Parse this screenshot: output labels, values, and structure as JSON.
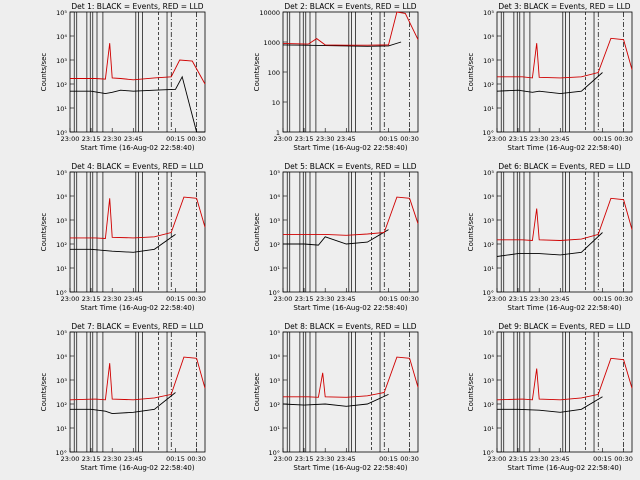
{
  "chart_data": [
    {
      "type": "line",
      "title": "Det 1: BLACK = Events, RED = LLD",
      "xlabel": "Start Time (16-Aug-02 22:58:40)",
      "ylabel": "Counts/sec",
      "ylog": true,
      "ytick_labels": [
        "10⁰",
        "10¹",
        "10²",
        "10³",
        "10⁴",
        "10⁵"
      ],
      "ylim": [
        1,
        100000
      ],
      "xtick_labels": [
        "23:00",
        "23:15",
        "23:30",
        "23:45",
        "00:15",
        "00:30"
      ],
      "series": [
        {
          "name": "BLACK = Events",
          "color": "#000000",
          "x": [
            23.0,
            23.25,
            23.42,
            23.5,
            23.6,
            23.75,
            24.0,
            24.25,
            24.33,
            24.5,
            24.6
          ],
          "y": [
            50,
            50,
            40,
            45,
            55,
            50,
            55,
            60,
            200,
            1,
            1
          ]
        },
        {
          "name": "RED = LLD",
          "color": "#d00000",
          "x": [
            23.0,
            23.3,
            23.42,
            23.47,
            23.5,
            23.6,
            23.75,
            24.0,
            24.2,
            24.3,
            24.45,
            24.6
          ],
          "y": [
            170,
            170,
            160,
            5000,
            180,
            170,
            150,
            180,
            200,
            1000,
            900,
            100
          ]
        }
      ]
    },
    {
      "type": "line",
      "title": "Det 2: BLACK = Events, RED = LLD",
      "xlabel": "Start Time (16-Aug-02 22:58:40)",
      "ylabel": "Counts/sec",
      "ylog": true,
      "ytick_labels": [
        "1",
        "10",
        "100",
        "1000",
        "10000"
      ],
      "ylim": [
        1,
        10000
      ],
      "xtick_labels": [
        "23:00",
        "23:15",
        "23:30",
        "23:45",
        "00:15",
        "00:30"
      ],
      "series": [
        {
          "name": "BLACK = Events",
          "color": "#000000",
          "x": [
            23.0,
            23.25,
            23.5,
            23.75,
            24.0,
            24.25,
            24.4
          ],
          "y": [
            800,
            780,
            760,
            740,
            720,
            740,
            1000
          ]
        },
        {
          "name": "RED = LLD",
          "color": "#d00000",
          "x": [
            23.0,
            23.3,
            23.4,
            23.5,
            23.75,
            24.0,
            24.25,
            24.35,
            24.45,
            24.6
          ],
          "y": [
            900,
            850,
            1300,
            800,
            780,
            780,
            800,
            10000,
            9000,
            1200
          ]
        }
      ]
    },
    {
      "type": "line",
      "title": "Det 3: BLACK = Events, RED = LLD",
      "xlabel": "Start Time (16-Aug-02 22:58:40)",
      "ylabel": "Counts/sec",
      "ylog": true,
      "ytick_labels": [
        "10°",
        "10¹",
        "10²",
        "10³",
        "10⁴",
        "10⁵"
      ],
      "ylim": [
        1,
        100000
      ],
      "xtick_labels": [
        "23:00",
        "23:15",
        "23:30",
        "23:45",
        "00:15",
        "00:30"
      ],
      "series": [
        {
          "name": "BLACK = Events",
          "color": "#000000",
          "x": [
            23.0,
            23.25,
            23.42,
            23.5,
            23.75,
            24.0,
            24.25
          ],
          "y": [
            50,
            55,
            45,
            50,
            40,
            50,
            300
          ]
        },
        {
          "name": "RED = LLD",
          "color": "#d00000",
          "x": [
            23.0,
            23.3,
            23.42,
            23.47,
            23.5,
            23.75,
            24.0,
            24.2,
            24.35,
            24.5,
            24.6
          ],
          "y": [
            200,
            200,
            180,
            5000,
            190,
            180,
            200,
            300,
            8000,
            7000,
            400
          ]
        }
      ]
    },
    {
      "type": "line",
      "title": "Det 4: BLACK = Events, RED = LLD",
      "xlabel": "Start Time (16-Aug-02 22:58:40)",
      "ylabel": "Counts/sec",
      "ylog": true,
      "ytick_labels": [
        "10°",
        "10¹",
        "10²",
        "10³",
        "10⁴",
        "10⁵"
      ],
      "ylim": [
        1,
        100000
      ],
      "xtick_labels": [
        "23:00",
        "23:15",
        "23:30",
        "23:45",
        "00:15",
        "00:30"
      ],
      "series": [
        {
          "name": "BLACK = Events",
          "color": "#000000",
          "x": [
            23.0,
            23.25,
            23.5,
            23.75,
            24.0,
            24.25
          ],
          "y": [
            60,
            60,
            50,
            45,
            60,
            250
          ]
        },
        {
          "name": "RED = LLD",
          "color": "#d00000",
          "x": [
            23.0,
            23.3,
            23.42,
            23.47,
            23.5,
            23.75,
            24.0,
            24.2,
            24.35,
            24.5,
            24.6
          ],
          "y": [
            180,
            180,
            170,
            8000,
            190,
            180,
            200,
            300,
            9000,
            8000,
            500
          ]
        }
      ]
    },
    {
      "type": "line",
      "title": "Det 5: BLACK = Events, RED = LLD",
      "xlabel": "Start Time (16-Aug-02 22:58:40)",
      "ylabel": "Counts/sec",
      "ylog": true,
      "ytick_labels": [
        "10°",
        "10¹",
        "10²",
        "10³",
        "10⁴",
        "10⁵"
      ],
      "ylim": [
        1,
        100000
      ],
      "xtick_labels": [
        "23:00",
        "23:15",
        "23:30",
        "23:45",
        "00:15",
        "00:30"
      ],
      "series": [
        {
          "name": "BLACK = Events",
          "color": "#000000",
          "x": [
            23.0,
            23.25,
            23.42,
            23.5,
            23.75,
            24.0,
            24.25
          ],
          "y": [
            100,
            100,
            90,
            200,
            100,
            120,
            400
          ]
        },
        {
          "name": "RED = LLD",
          "color": "#d00000",
          "x": [
            23.0,
            23.3,
            23.5,
            23.75,
            24.0,
            24.2,
            24.35,
            24.5,
            24.6
          ],
          "y": [
            250,
            250,
            250,
            230,
            260,
            300,
            9000,
            8000,
            700
          ]
        }
      ]
    },
    {
      "type": "line",
      "title": "Det 6: BLACK = Events, RED = LLD",
      "xlabel": "Start Time (16-Aug-02 22:58:40)",
      "ylabel": "Counts/sec",
      "ylog": true,
      "ytick_labels": [
        "10°",
        "10¹",
        "10²",
        "10³",
        "10⁴",
        "10⁵"
      ],
      "ylim": [
        1,
        100000
      ],
      "xtick_labels": [
        "23:00",
        "23:15",
        "23:30",
        "23:45",
        "00:15",
        "00:30"
      ],
      "series": [
        {
          "name": "BLACK = Events",
          "color": "#000000",
          "x": [
            23.0,
            23.25,
            23.5,
            23.75,
            24.0,
            24.25
          ],
          "y": [
            30,
            40,
            40,
            35,
            45,
            300
          ]
        },
        {
          "name": "RED = LLD",
          "color": "#d00000",
          "x": [
            23.0,
            23.3,
            23.42,
            23.47,
            23.5,
            23.75,
            24.0,
            24.2,
            24.35,
            24.5,
            24.6
          ],
          "y": [
            150,
            150,
            140,
            3000,
            150,
            140,
            160,
            250,
            8000,
            7000,
            400
          ]
        }
      ]
    },
    {
      "type": "line",
      "title": "Det 7: BLACK = Events, RED = LLD",
      "xlabel": "Start Time (16-Aug-02 22:58:40)",
      "ylabel": "Counts/sec",
      "ylog": true,
      "ytick_labels": [
        "10°",
        "10¹",
        "10²",
        "10³",
        "10⁴",
        "10⁵"
      ],
      "ylim": [
        1,
        100000
      ],
      "xtick_labels": [
        "23:00",
        "23:15",
        "23:30",
        "23:45",
        "00:15",
        "00:30"
      ],
      "series": [
        {
          "name": "BLACK = Events",
          "color": "#000000",
          "x": [
            23.0,
            23.25,
            23.42,
            23.5,
            23.75,
            24.0,
            24.25
          ],
          "y": [
            60,
            60,
            50,
            40,
            45,
            60,
            300
          ]
        },
        {
          "name": "RED = LLD",
          "color": "#d00000",
          "x": [
            23.0,
            23.3,
            23.42,
            23.47,
            23.5,
            23.75,
            24.0,
            24.2,
            24.35,
            24.5,
            24.6
          ],
          "y": [
            150,
            160,
            150,
            5000,
            160,
            150,
            180,
            250,
            9000,
            8000,
            450
          ]
        }
      ]
    },
    {
      "type": "line",
      "title": "Det 8: BLACK = Events, RED = LLD",
      "xlabel": "Start Time (16-Aug-02 22:58:40)",
      "ylabel": "Counts/sec",
      "ylog": true,
      "ytick_labels": [
        "10°",
        "10¹",
        "10²",
        "10³",
        "10⁴",
        "10⁵"
      ],
      "ylim": [
        1,
        100000
      ],
      "xtick_labels": [
        "23:00",
        "23:15",
        "23:30",
        "23:45",
        "00:15",
        "00:30"
      ],
      "series": [
        {
          "name": "BLACK = Events",
          "color": "#000000",
          "x": [
            23.0,
            23.25,
            23.5,
            23.75,
            24.0,
            24.25
          ],
          "y": [
            100,
            90,
            100,
            80,
            100,
            250
          ]
        },
        {
          "name": "RED = LLD",
          "color": "#d00000",
          "x": [
            23.0,
            23.3,
            23.42,
            23.47,
            23.5,
            23.75,
            24.0,
            24.2,
            24.35,
            24.5,
            24.6
          ],
          "y": [
            200,
            200,
            190,
            2000,
            200,
            190,
            220,
            300,
            9000,
            8000,
            500
          ]
        }
      ]
    },
    {
      "type": "line",
      "title": "Det 9: BLACK = Events, RED = LLD",
      "xlabel": "Start Time (16-Aug-02 22:58:40)",
      "ylabel": "Counts/sec",
      "ylog": true,
      "ytick_labels": [
        "10°",
        "10¹",
        "10²",
        "10³",
        "10⁴",
        "10⁵"
      ],
      "ylim": [
        1,
        100000
      ],
      "xtick_labels": [
        "23:00",
        "23:15",
        "23:30",
        "23:45",
        "00:15",
        "00:30"
      ],
      "series": [
        {
          "name": "BLACK = Events",
          "color": "#000000",
          "x": [
            23.0,
            23.25,
            23.5,
            23.75,
            24.0,
            24.25
          ],
          "y": [
            60,
            60,
            55,
            45,
            60,
            200
          ]
        },
        {
          "name": "RED = LLD",
          "color": "#d00000",
          "x": [
            23.0,
            23.3,
            23.42,
            23.47,
            23.5,
            23.75,
            24.0,
            24.2,
            24.35,
            24.5,
            24.6
          ],
          "y": [
            150,
            160,
            150,
            3000,
            160,
            150,
            180,
            250,
            8000,
            7000,
            450
          ]
        }
      ]
    }
  ]
}
